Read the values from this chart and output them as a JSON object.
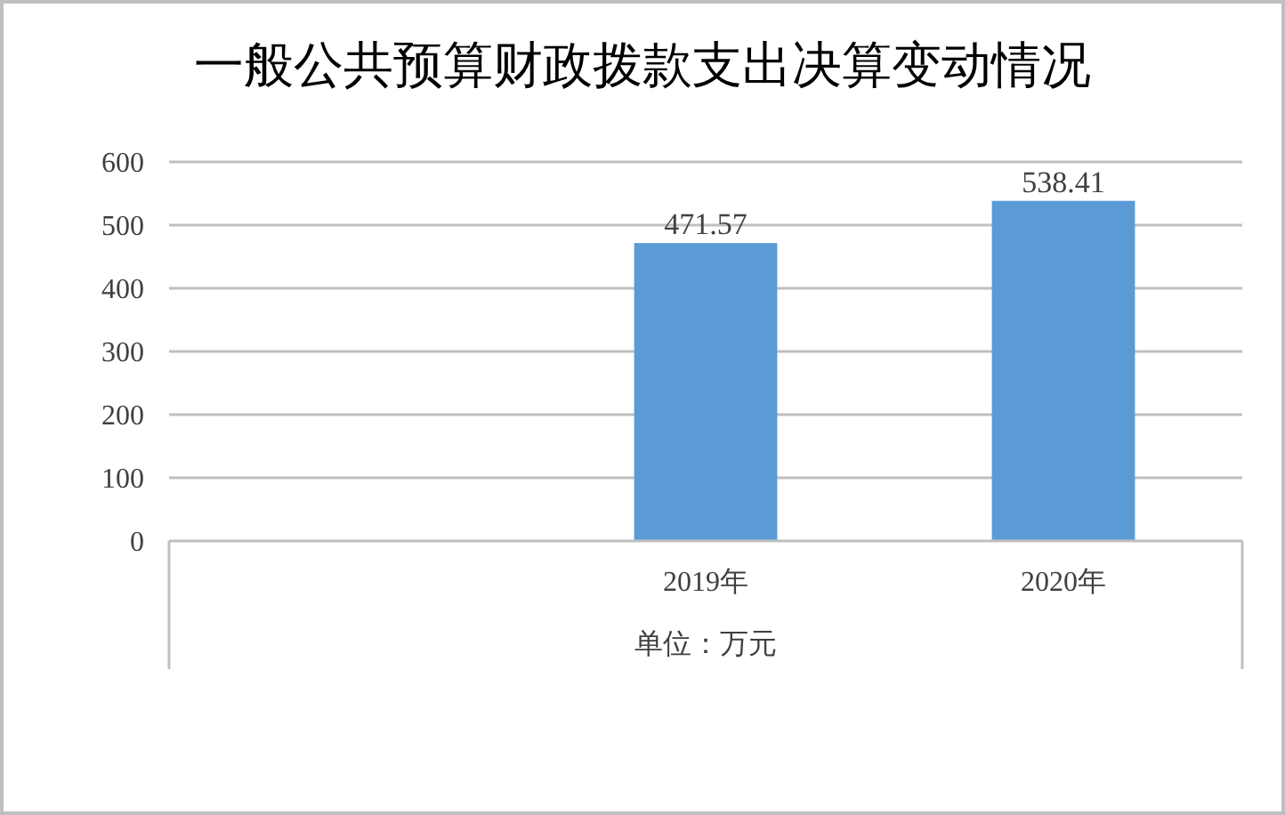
{
  "chart_data": {
    "type": "bar",
    "title": "一般公共预算财政拨款支出决算变动情况",
    "xlabel": "单位：万元",
    "categories": [
      null,
      "2019年",
      "2020年"
    ],
    "values": [
      null,
      471.57,
      538.41
    ],
    "color": "#5b9bd5",
    "ylim": [
      0,
      600
    ],
    "yticks": [
      0,
      100,
      200,
      300,
      400,
      500,
      600
    ],
    "grid": "y",
    "data_labels": true
  }
}
